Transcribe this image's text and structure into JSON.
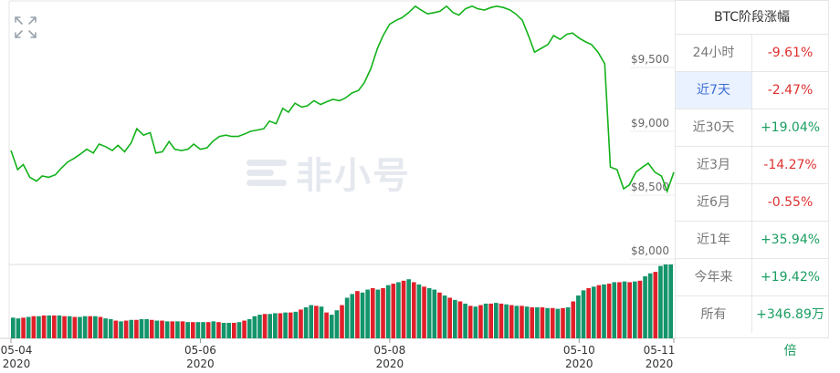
{
  "panel": {
    "title": "BTC阶段涨幅",
    "rows": [
      {
        "period": "24小时",
        "change": "-9.61%",
        "direction": "neg",
        "active": false
      },
      {
        "period": "近7天",
        "change": "-2.47%",
        "direction": "neg",
        "active": true
      },
      {
        "period": "近30天",
        "change": "+19.04%",
        "direction": "pos",
        "active": false
      },
      {
        "period": "近3月",
        "change": "-14.27%",
        "direction": "neg",
        "active": false
      },
      {
        "period": "近6月",
        "change": "-0.55%",
        "direction": "neg",
        "active": false
      },
      {
        "period": "近1年",
        "change": "+35.94%",
        "direction": "pos",
        "active": false
      },
      {
        "period": "今年来",
        "change": "+19.42%",
        "direction": "pos",
        "active": false
      },
      {
        "period": "所有",
        "change": "+346.89万倍",
        "direction": "pos",
        "active": false
      }
    ]
  },
  "watermark": "非小号",
  "colors": {
    "line": "#13b21a",
    "up_bar": "#13946a",
    "down_bar": "#e0202a",
    "negative": "#e03030",
    "positive": "#1a9e61",
    "active_bg": "#eaf2ff",
    "active_text": "#3c6ed6"
  },
  "icons": {
    "expand": "expand-arrows-icon"
  },
  "chart_data": {
    "type": "line",
    "y_ticks": [
      8000,
      8500,
      9000,
      9500
    ],
    "y_tick_labels": [
      "$8,000",
      "$8,500",
      "$9,000",
      "$9,500"
    ],
    "ylim": [
      8000,
      10000
    ],
    "x_ticks": [
      {
        "t": 0,
        "date": "05-04",
        "year": "2020"
      },
      {
        "t": 2,
        "date": "05-06",
        "year": "2020"
      },
      {
        "t": 4,
        "date": "05-08",
        "year": "2020"
      },
      {
        "t": 6,
        "date": "05-10",
        "year": "2020"
      },
      {
        "t": 7,
        "date": "05-11",
        "year": "2020"
      }
    ],
    "xlim": [
      0,
      7
    ],
    "series": [
      {
        "values": [
          [
            0.0,
            8850
          ],
          [
            0.07,
            8700
          ],
          [
            0.13,
            8740
          ],
          [
            0.2,
            8640
          ],
          [
            0.27,
            8610
          ],
          [
            0.33,
            8650
          ],
          [
            0.4,
            8640
          ],
          [
            0.47,
            8660
          ],
          [
            0.53,
            8710
          ],
          [
            0.6,
            8760
          ],
          [
            0.67,
            8790
          ],
          [
            0.73,
            8820
          ],
          [
            0.8,
            8860
          ],
          [
            0.87,
            8830
          ],
          [
            0.93,
            8900
          ],
          [
            1.0,
            8880
          ],
          [
            1.07,
            8850
          ],
          [
            1.13,
            8890
          ],
          [
            1.2,
            8840
          ],
          [
            1.27,
            8910
          ],
          [
            1.33,
            9020
          ],
          [
            1.4,
            8970
          ],
          [
            1.47,
            8990
          ],
          [
            1.53,
            8830
          ],
          [
            1.6,
            8840
          ],
          [
            1.67,
            8920
          ],
          [
            1.73,
            8860
          ],
          [
            1.8,
            8850
          ],
          [
            1.87,
            8860
          ],
          [
            1.93,
            8900
          ],
          [
            2.0,
            8860
          ],
          [
            2.07,
            8870
          ],
          [
            2.13,
            8920
          ],
          [
            2.2,
            8960
          ],
          [
            2.27,
            8970
          ],
          [
            2.33,
            8960
          ],
          [
            2.4,
            8960
          ],
          [
            2.47,
            8980
          ],
          [
            2.53,
            9000
          ],
          [
            2.6,
            9010
          ],
          [
            2.67,
            9020
          ],
          [
            2.73,
            9080
          ],
          [
            2.8,
            9060
          ],
          [
            2.87,
            9180
          ],
          [
            2.93,
            9150
          ],
          [
            3.0,
            9220
          ],
          [
            3.07,
            9190
          ],
          [
            3.13,
            9200
          ],
          [
            3.2,
            9240
          ],
          [
            3.27,
            9210
          ],
          [
            3.33,
            9230
          ],
          [
            3.4,
            9250
          ],
          [
            3.47,
            9240
          ],
          [
            3.53,
            9260
          ],
          [
            3.6,
            9300
          ],
          [
            3.67,
            9320
          ],
          [
            3.73,
            9380
          ],
          [
            3.8,
            9490
          ],
          [
            3.87,
            9650
          ],
          [
            3.93,
            9750
          ],
          [
            4.0,
            9840
          ],
          [
            4.07,
            9870
          ],
          [
            4.13,
            9890
          ],
          [
            4.2,
            9930
          ],
          [
            4.27,
            9980
          ],
          [
            4.33,
            9950
          ],
          [
            4.4,
            9920
          ],
          [
            4.47,
            9930
          ],
          [
            4.53,
            9940
          ],
          [
            4.6,
            9980
          ],
          [
            4.67,
            9930
          ],
          [
            4.73,
            9910
          ],
          [
            4.8,
            9960
          ],
          [
            4.87,
            9980
          ],
          [
            4.93,
            9960
          ],
          [
            5.0,
            9950
          ],
          [
            5.07,
            9970
          ],
          [
            5.13,
            9980
          ],
          [
            5.2,
            9970
          ],
          [
            5.27,
            9950
          ],
          [
            5.33,
            9920
          ],
          [
            5.4,
            9870
          ],
          [
            5.47,
            9740
          ],
          [
            5.53,
            9620
          ],
          [
            5.6,
            9650
          ],
          [
            5.67,
            9680
          ],
          [
            5.73,
            9750
          ],
          [
            5.8,
            9720
          ],
          [
            5.87,
            9760
          ],
          [
            5.93,
            9770
          ],
          [
            6.0,
            9730
          ],
          [
            6.07,
            9700
          ],
          [
            6.13,
            9680
          ],
          [
            6.2,
            9620
          ],
          [
            6.27,
            9530
          ],
          [
            6.33,
            8720
          ],
          [
            6.4,
            8700
          ],
          [
            6.47,
            8550
          ],
          [
            6.53,
            8580
          ],
          [
            6.6,
            8680
          ],
          [
            6.67,
            8720
          ],
          [
            6.73,
            8750
          ],
          [
            6.8,
            8680
          ],
          [
            6.87,
            8650
          ],
          [
            6.93,
            8530
          ],
          [
            7.0,
            8680
          ]
        ]
      }
    ],
    "volume": {
      "ylim": [
        0,
        1
      ],
      "bars": [
        [
          0.28,
          "up"
        ],
        [
          0.27,
          "up"
        ],
        [
          0.28,
          "down"
        ],
        [
          0.29,
          "up"
        ],
        [
          0.3,
          "down"
        ],
        [
          0.3,
          "up"
        ],
        [
          0.31,
          "down"
        ],
        [
          0.31,
          "up"
        ],
        [
          0.31,
          "down"
        ],
        [
          0.31,
          "up"
        ],
        [
          0.3,
          "down"
        ],
        [
          0.3,
          "up"
        ],
        [
          0.29,
          "down"
        ],
        [
          0.29,
          "up"
        ],
        [
          0.3,
          "up"
        ],
        [
          0.3,
          "down"
        ],
        [
          0.3,
          "up"
        ],
        [
          0.29,
          "down"
        ],
        [
          0.27,
          "up"
        ],
        [
          0.26,
          "up"
        ],
        [
          0.24,
          "down"
        ],
        [
          0.23,
          "up"
        ],
        [
          0.24,
          "down"
        ],
        [
          0.25,
          "up"
        ],
        [
          0.25,
          "down"
        ],
        [
          0.26,
          "up"
        ],
        [
          0.26,
          "up"
        ],
        [
          0.25,
          "down"
        ],
        [
          0.24,
          "up"
        ],
        [
          0.24,
          "down"
        ],
        [
          0.23,
          "up"
        ],
        [
          0.23,
          "down"
        ],
        [
          0.23,
          "up"
        ],
        [
          0.23,
          "down"
        ],
        [
          0.22,
          "up"
        ],
        [
          0.22,
          "down"
        ],
        [
          0.22,
          "up"
        ],
        [
          0.22,
          "up"
        ],
        [
          0.22,
          "down"
        ],
        [
          0.23,
          "up"
        ],
        [
          0.22,
          "down"
        ],
        [
          0.21,
          "up"
        ],
        [
          0.21,
          "up"
        ],
        [
          0.21,
          "down"
        ],
        [
          0.22,
          "up"
        ],
        [
          0.24,
          "down"
        ],
        [
          0.26,
          "up"
        ],
        [
          0.3,
          "up"
        ],
        [
          0.32,
          "up"
        ],
        [
          0.33,
          "down"
        ],
        [
          0.33,
          "up"
        ],
        [
          0.34,
          "up"
        ],
        [
          0.34,
          "down"
        ],
        [
          0.35,
          "up"
        ],
        [
          0.35,
          "down"
        ],
        [
          0.36,
          "up"
        ],
        [
          0.39,
          "down"
        ],
        [
          0.42,
          "up"
        ],
        [
          0.45,
          "up"
        ],
        [
          0.44,
          "down"
        ],
        [
          0.43,
          "up"
        ],
        [
          0.35,
          "down"
        ],
        [
          0.32,
          "up"
        ],
        [
          0.38,
          "up"
        ],
        [
          0.45,
          "down"
        ],
        [
          0.55,
          "up"
        ],
        [
          0.6,
          "up"
        ],
        [
          0.64,
          "down"
        ],
        [
          0.62,
          "up"
        ],
        [
          0.66,
          "up"
        ],
        [
          0.68,
          "down"
        ],
        [
          0.66,
          "up"
        ],
        [
          0.68,
          "down"
        ],
        [
          0.72,
          "up"
        ],
        [
          0.74,
          "down"
        ],
        [
          0.76,
          "up"
        ],
        [
          0.78,
          "down"
        ],
        [
          0.8,
          "up"
        ],
        [
          0.76,
          "down"
        ],
        [
          0.73,
          "up"
        ],
        [
          0.7,
          "down"
        ],
        [
          0.68,
          "up"
        ],
        [
          0.66,
          "up"
        ],
        [
          0.62,
          "down"
        ],
        [
          0.58,
          "up"
        ],
        [
          0.55,
          "down"
        ],
        [
          0.52,
          "up"
        ],
        [
          0.5,
          "down"
        ],
        [
          0.47,
          "up"
        ],
        [
          0.44,
          "down"
        ],
        [
          0.43,
          "up"
        ],
        [
          0.45,
          "down"
        ],
        [
          0.47,
          "up"
        ],
        [
          0.47,
          "down"
        ],
        [
          0.48,
          "up"
        ],
        [
          0.47,
          "down"
        ],
        [
          0.46,
          "up"
        ],
        [
          0.45,
          "down"
        ],
        [
          0.44,
          "up"
        ],
        [
          0.44,
          "down"
        ],
        [
          0.43,
          "up"
        ],
        [
          0.42,
          "down"
        ],
        [
          0.42,
          "up"
        ],
        [
          0.42,
          "down"
        ],
        [
          0.41,
          "up"
        ],
        [
          0.41,
          "down"
        ],
        [
          0.4,
          "up"
        ],
        [
          0.41,
          "down"
        ],
        [
          0.42,
          "up"
        ],
        [
          0.5,
          "down"
        ],
        [
          0.58,
          "up"
        ],
        [
          0.65,
          "up"
        ],
        [
          0.68,
          "down"
        ],
        [
          0.7,
          "up"
        ],
        [
          0.72,
          "down"
        ],
        [
          0.73,
          "up"
        ],
        [
          0.74,
          "down"
        ],
        [
          0.76,
          "up"
        ],
        [
          0.76,
          "down"
        ],
        [
          0.77,
          "up"
        ],
        [
          0.76,
          "down"
        ],
        [
          0.77,
          "up"
        ],
        [
          0.78,
          "down"
        ],
        [
          0.84,
          "up"
        ],
        [
          0.88,
          "up"
        ],
        [
          0.9,
          "down"
        ],
        [
          0.98,
          "up"
        ],
        [
          1.0,
          "up"
        ],
        [
          1.0,
          "up"
        ]
      ]
    }
  }
}
